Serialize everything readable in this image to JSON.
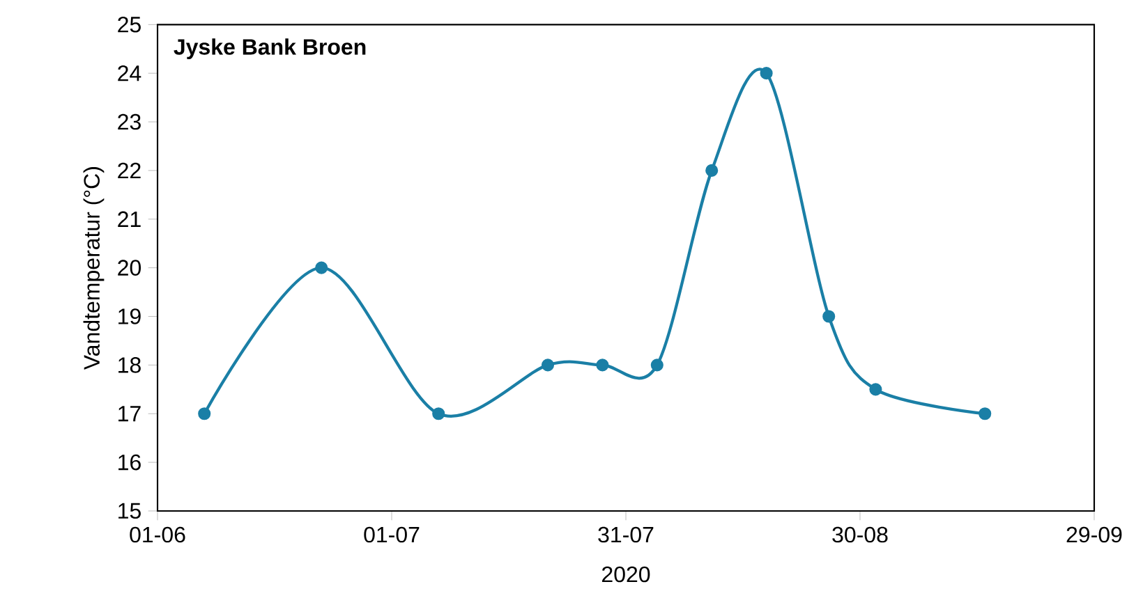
{
  "chart_data": {
    "type": "line",
    "title": "Jyske Bank Broen",
    "xlabel": "2020",
    "ylabel": "Vandtemperatur (°C)",
    "x": [
      "2020-06-07",
      "2020-06-22",
      "2020-07-07",
      "2020-07-21",
      "2020-07-28",
      "2020-08-04",
      "2020-08-11",
      "2020-08-18",
      "2020-08-26",
      "2020-09-01",
      "2020-09-15"
    ],
    "series": [
      {
        "color": "#1a7fa6",
        "values": [
          17,
          20,
          17,
          18,
          18,
          18,
          22,
          24,
          19,
          17.5,
          17
        ]
      }
    ],
    "xlim": [
      "2020-06-01",
      "2020-09-29"
    ],
    "xticks": [
      {
        "value": "2020-06-01",
        "label": "01-06"
      },
      {
        "value": "2020-07-01",
        "label": "01-07"
      },
      {
        "value": "2020-07-31",
        "label": "31-07"
      },
      {
        "value": "2020-08-30",
        "label": "30-08"
      },
      {
        "value": "2020-09-29",
        "label": "29-09"
      }
    ],
    "ylim": [
      15,
      25
    ],
    "yticks": [
      15,
      16,
      17,
      18,
      19,
      20,
      21,
      22,
      23,
      24,
      25
    ],
    "grid": false,
    "marker": "circle",
    "line_style": "solid"
  }
}
